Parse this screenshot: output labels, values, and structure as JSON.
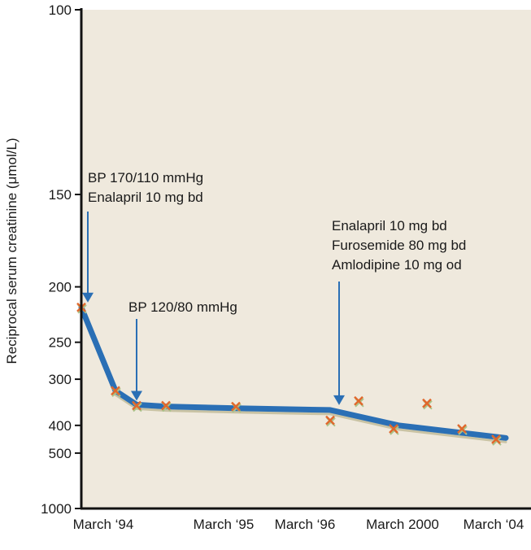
{
  "chart_data": {
    "type": "line",
    "title": "",
    "xlabel": "",
    "ylabel": "Reciprocal serum creatinine (μmol/L)",
    "y_scale": "reciprocal",
    "ylim": [
      100,
      1000
    ],
    "y_ticks": [
      100,
      150,
      200,
      250,
      300,
      400,
      500,
      1000
    ],
    "x_tick_labels": [
      "March ‘94",
      "March ‘95",
      "March ‘96",
      "March 2000",
      "March ‘04"
    ],
    "grid": false,
    "colors": {
      "plot_bg": "#efe9dd",
      "trend_line": "#2a6fb5",
      "trend_shadow": "#c9c3a4",
      "marker": "#e0682c",
      "arrow": "#2a6fb5"
    },
    "markers": [
      {
        "label": "March ‘94",
        "y": 216
      },
      {
        "label": "",
        "y": 320
      },
      {
        "label": "",
        "y": 350
      },
      {
        "label": "",
        "y": 350
      },
      {
        "label": "March ‘95",
        "y": 352
      },
      {
        "label": "March ‘96",
        "y": 386
      },
      {
        "label": "",
        "y": 340
      },
      {
        "label": "March 2000",
        "y": 410
      },
      {
        "label": "",
        "y": 345
      },
      {
        "label": "",
        "y": 410
      },
      {
        "label": "March ‘04",
        "y": 445
      }
    ],
    "trend_line": [
      {
        "y": 216
      },
      {
        "y": 320
      },
      {
        "y": 348
      },
      {
        "y": 352
      },
      {
        "y": 356
      },
      {
        "y": 360
      },
      {
        "y": 400
      },
      {
        "y": 440
      }
    ],
    "annotations": [
      {
        "lines": [
          "BP  170/110 mmHg",
          "Enalapril 10 mg bd"
        ],
        "points_to": "March ‘94",
        "y": 216
      },
      {
        "lines": [
          "BP 120/80 mmHg"
        ],
        "points_to": "",
        "y": 350
      },
      {
        "lines": [
          "Enalapril 10 mg bd",
          "Furosemide 80 mg bd",
          "Amlodipine 10 mg od"
        ],
        "points_to": "March ‘96",
        "y": 360
      }
    ]
  }
}
